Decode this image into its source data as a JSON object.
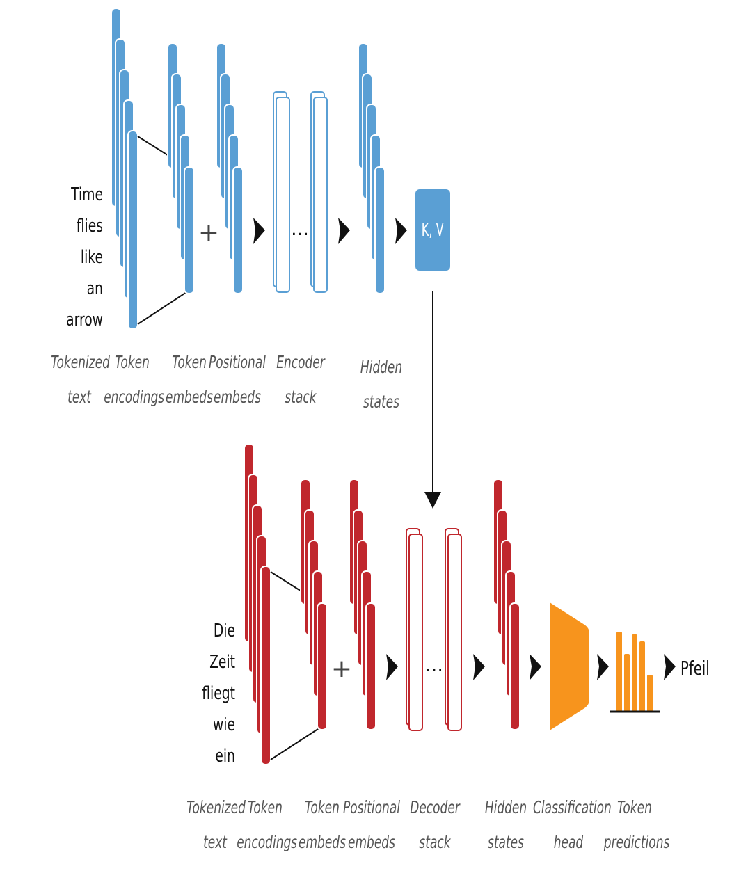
{
  "colors": {
    "encoder_blue": "#5a9fd4",
    "decoder_red": "#c0272d",
    "head_orange": "#f7941d",
    "caption_gray": "#555555",
    "line_black": "#111111"
  },
  "encoder": {
    "input_tokens": [
      "Time",
      "flies",
      "like",
      "an",
      "arrow"
    ],
    "captions": {
      "tokenized_text": "Tokenized\ntext",
      "token_encodings": "Token\nencodings",
      "token_embeds": "Token\nembeds",
      "positional_embeds": "Positional\nembeds",
      "stack": "Encoder\nstack",
      "hidden_states": "Hidden\nstates"
    },
    "plus": "+",
    "ellipsis": "…",
    "kv_label": "K, V"
  },
  "decoder": {
    "input_tokens": [
      "Die",
      "Zeit",
      "fliegt",
      "wie",
      "ein"
    ],
    "captions": {
      "tokenized_text": "Tokenized\ntext",
      "token_encodings": "Token\nencodings",
      "token_embeds": "Token\nembeds",
      "positional_embeds": "Positional\nembeds",
      "stack": "Decoder\nstack",
      "hidden_states": "Hidden\nstates",
      "classification_head": "Classification\nhead",
      "token_predictions": "Token\npredictions"
    },
    "plus": "+",
    "ellipsis": "…",
    "output_token": "Pfeil"
  }
}
